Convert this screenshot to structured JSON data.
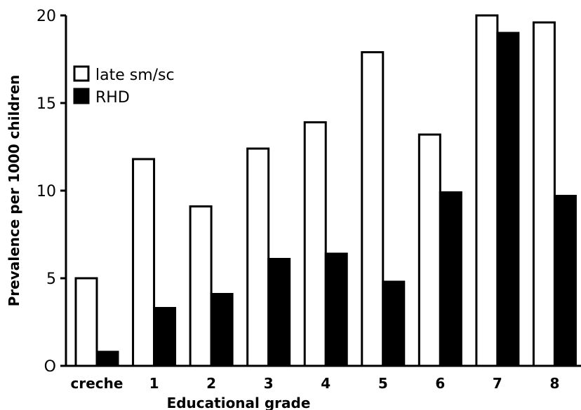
{
  "chart_data": {
    "type": "bar",
    "title": "",
    "xlabel": "Educational grade",
    "ylabel": "Prevalence per 1000 children",
    "categories": [
      "creche",
      "1",
      "2",
      "3",
      "4",
      "5",
      "6",
      "7",
      "8"
    ],
    "ylim": [
      0,
      20
    ],
    "yticks": [
      0,
      5,
      10,
      15,
      20
    ],
    "ytick_labels": [
      "O",
      "5",
      "10",
      "15",
      "20"
    ],
    "grid": false,
    "legend_position": "top-left",
    "series": [
      {
        "name": "late sm/sc",
        "color": "#ffffff",
        "stroke": "#000000",
        "values": [
          5.0,
          11.8,
          9.1,
          12.4,
          13.9,
          17.9,
          13.2,
          20.0,
          19.6
        ]
      },
      {
        "name": "RHD",
        "color": "#000000",
        "stroke": "#000000",
        "values": [
          0.8,
          3.3,
          4.1,
          6.1,
          6.4,
          4.8,
          9.9,
          19.0,
          9.7
        ]
      }
    ]
  }
}
